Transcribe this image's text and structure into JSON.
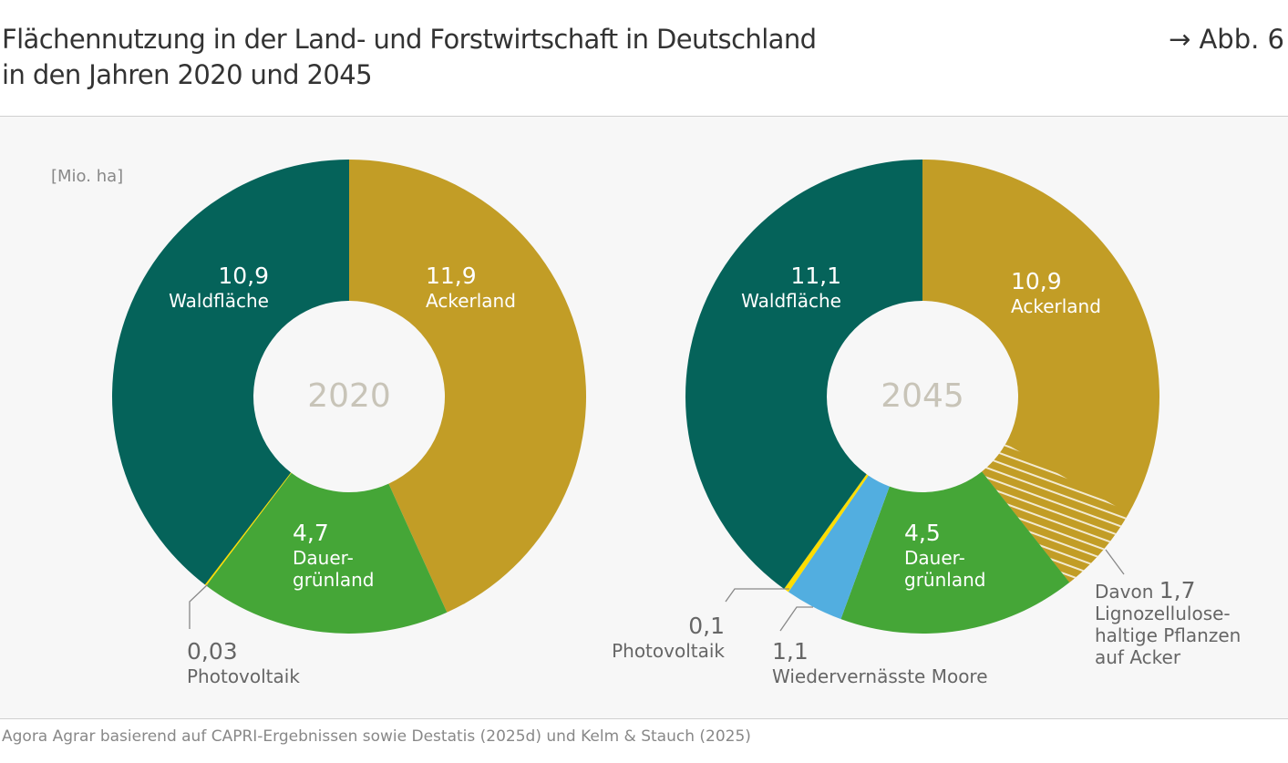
{
  "header": {
    "title_line1": "Flächennutzung in der Land- und Forstwirtschaft in Deutschland",
    "title_line2": "in den Jahren 2020 und 2045",
    "figure_ref": "→ Abb. 6"
  },
  "source": "Agora Agrar basierend auf CAPRI-Ergebnissen sowie Destatis (2025d) und Kelm & Stauch (2025)",
  "colors": {
    "Ackerland": "#c29d26",
    "Dauergrünland": "#45a637",
    "Photovoltaik": "#ffdd00",
    "Wiedervernässte Moore": "#52aee0",
    "Waldfläche": "#05635a"
  },
  "chart_data": [
    {
      "type": "pie",
      "donut": true,
      "center_label": "2020",
      "unit": "[Mio. ha]",
      "slices": [
        {
          "label": "Ackerland",
          "value": 11.9,
          "value_text": "11,9"
        },
        {
          "label": "Dauer-\ngrünland",
          "value": 4.7,
          "value_text": "4,7"
        },
        {
          "label": "Photovoltaik",
          "value": 0.03,
          "value_text": "0,03"
        },
        {
          "label": "Waldfläche",
          "value": 10.9,
          "value_text": "10,9"
        }
      ]
    },
    {
      "type": "pie",
      "donut": true,
      "center_label": "2045",
      "slices": [
        {
          "label": "Ackerland",
          "value": 10.9,
          "value_text": "10,9",
          "hatched_subset": {
            "prefix": "Davon",
            "label": "Lignozellulose-\nhaltige Pflanzen\nauf Acker",
            "value": 1.7,
            "value_text": "1,7"
          }
        },
        {
          "label": "Dauer-\ngrünland",
          "value": 4.5,
          "value_text": "4,5"
        },
        {
          "label": "Wiedervernässte Moore",
          "value": 1.1,
          "value_text": "1,1"
        },
        {
          "label": "Photovoltaik",
          "value": 0.1,
          "value_text": "0,1"
        },
        {
          "label": "Waldfläche",
          "value": 11.1,
          "value_text": "11,1"
        }
      ]
    }
  ]
}
